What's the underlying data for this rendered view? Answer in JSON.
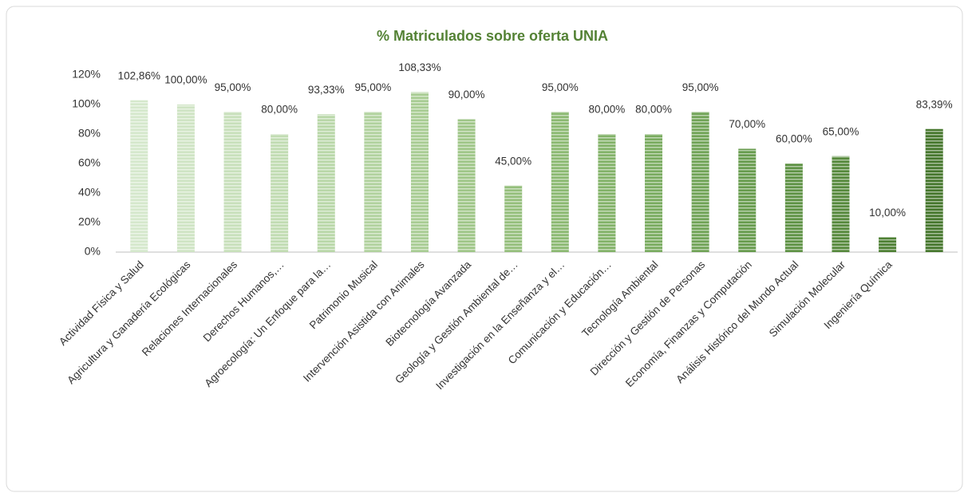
{
  "chart_data": {
    "type": "bar",
    "title": "% Matriculados sobre oferta UNIA",
    "categories": [
      "Actividad Física y Salud",
      "Agricultura y Ganadería Ecológicas",
      "Relaciones Internacionales",
      "Derechos Humanos,…",
      "Agroecología: Un Enfoque para la…",
      "Patrimonio Musical",
      "Intervención Asistida con Animales",
      "Biotecnología Avanzada",
      "Geología y Gestión Ambiental de…",
      "Investigación en la Enseñanza y el…",
      "Comunicación y Educación…",
      "Tecnología Ambiental",
      "Dirección y Gestión de Personas",
      "Economía, Finanzas y Computación",
      "Análisis Histórico del Mundo Actual",
      "Simulación Molecular",
      "Ingeniería Química",
      null
    ],
    "values": [
      102.86,
      100,
      95,
      80,
      93.33,
      95,
      108.33,
      90,
      45,
      95,
      80,
      80,
      95,
      70,
      60,
      65,
      10,
      83.39
    ],
    "value_labels": [
      "102,86%",
      "100,00%",
      "95,00%",
      "80,00%",
      "93,33%",
      "95,00%",
      "108,33%",
      "90,00%",
      "45,00%",
      "95,00%",
      "80,00%",
      "80,00%",
      "95,00%",
      "70,00%",
      "60,00%",
      "65,00%",
      "10,00%",
      "83,39%"
    ],
    "colors": [
      "#d5e8cc",
      "#cfe4c4",
      "#c8e0bb",
      "#c1dcb2",
      "#b9d7a8",
      "#b1d29e",
      "#a8cc93",
      "#9fc688",
      "#95bf7c",
      "#8bb971",
      "#82b268",
      "#79ab5f",
      "#70a356",
      "#679b4d",
      "#5e9244",
      "#56893c",
      "#4e8034",
      "#46772d"
    ],
    "ylim": [
      0,
      120
    ],
    "yticks": [
      {
        "value": 0,
        "label": "0%"
      },
      {
        "value": 20,
        "label": "20%"
      },
      {
        "value": 40,
        "label": "40%"
      },
      {
        "value": 60,
        "label": "60%"
      },
      {
        "value": 80,
        "label": "80%"
      },
      {
        "value": 100,
        "label": "100%"
      },
      {
        "value": 120,
        "label": "120%"
      }
    ],
    "grid": false
  }
}
